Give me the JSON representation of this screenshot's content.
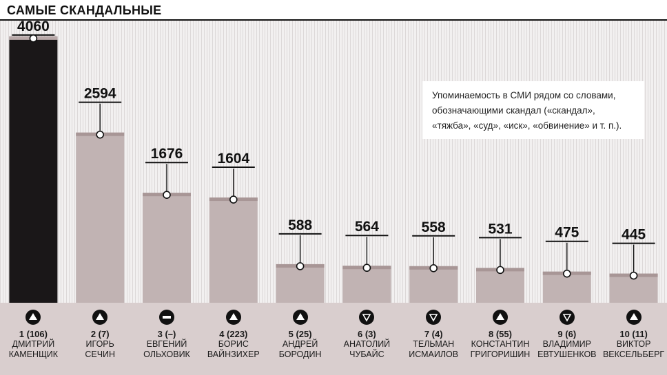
{
  "title": "САМЫЕ СКАНДАЛЬНЫЕ",
  "note": "Упоминаемость в СМИ рядом со словами, обозначающими скандал («скандал», «тяжба», «суд», «иск», «обвинение» и т. п.).",
  "colors": {
    "highlight_bar": "#1a1718",
    "bar": "#c1b3b3",
    "bar_cap": "#a89696",
    "footer_bg": "#d9cece",
    "icon": "#111111"
  },
  "chart_data": {
    "type": "bar",
    "categories": [
      "ДМИТРИЙ КАМЕНЩИК",
      "ИГОРЬ СЕЧИН",
      "ЕВГЕНИЙ ОЛЬХОВИК",
      "БОРИС ВАЙНЗИХЕР",
      "АНДРЕЙ БОРОДИН",
      "АНАТОЛИЙ ЧУБАЙС",
      "ТЕЛЬМАН ИСМАИЛОВ",
      "КОНСТАНТИН ГРИГОРИШИН",
      "ВЛАДИМИР ЕВТУШЕНКОВ",
      "ВИКТОР ВЕКСЕЛЬБЕРГ"
    ],
    "values": [
      4060,
      2594,
      1676,
      1604,
      588,
      564,
      558,
      531,
      475,
      445
    ],
    "value_labels": [
      "4060",
      "2594",
      "1676",
      "1604",
      "588",
      "564",
      "558",
      "531",
      "475",
      "445"
    ],
    "ylim": [
      0,
      4300
    ],
    "highlight_index": 0
  },
  "people": [
    {
      "rank": "1 (106)",
      "name1": "ДМИТРИЙ",
      "name2": "КАМЕНЩИК",
      "trend": "up"
    },
    {
      "rank": "2 (7)",
      "name1": "ИГОРЬ",
      "name2": "СЕЧИН",
      "trend": "up"
    },
    {
      "rank": "3 (–)",
      "name1": "ЕВГЕНИЙ",
      "name2": "ОЛЬХОВИК",
      "trend": "new"
    },
    {
      "rank": "4 (223)",
      "name1": "БОРИС",
      "name2": "ВАЙНЗИХЕР",
      "trend": "up"
    },
    {
      "rank": "5 (25)",
      "name1": "АНДРЕЙ",
      "name2": "БОРОДИН",
      "trend": "up"
    },
    {
      "rank": "6 (3)",
      "name1": "АНАТОЛИЙ",
      "name2": "ЧУБАЙС",
      "trend": "down"
    },
    {
      "rank": "7 (4)",
      "name1": "ТЕЛЬМАН",
      "name2": "ИСМАИЛОВ",
      "trend": "down"
    },
    {
      "rank": "8 (55)",
      "name1": "КОНСТАНТИН",
      "name2": "ГРИГОРИШИН",
      "trend": "up"
    },
    {
      "rank": "9 (6)",
      "name1": "ВЛАДИМИР",
      "name2": "ЕВТУШЕНКОВ",
      "trend": "down"
    },
    {
      "rank": "10 (11)",
      "name1": "ВИКТОР",
      "name2": "ВЕКСЕЛЬБЕРГ",
      "trend": "up"
    }
  ]
}
